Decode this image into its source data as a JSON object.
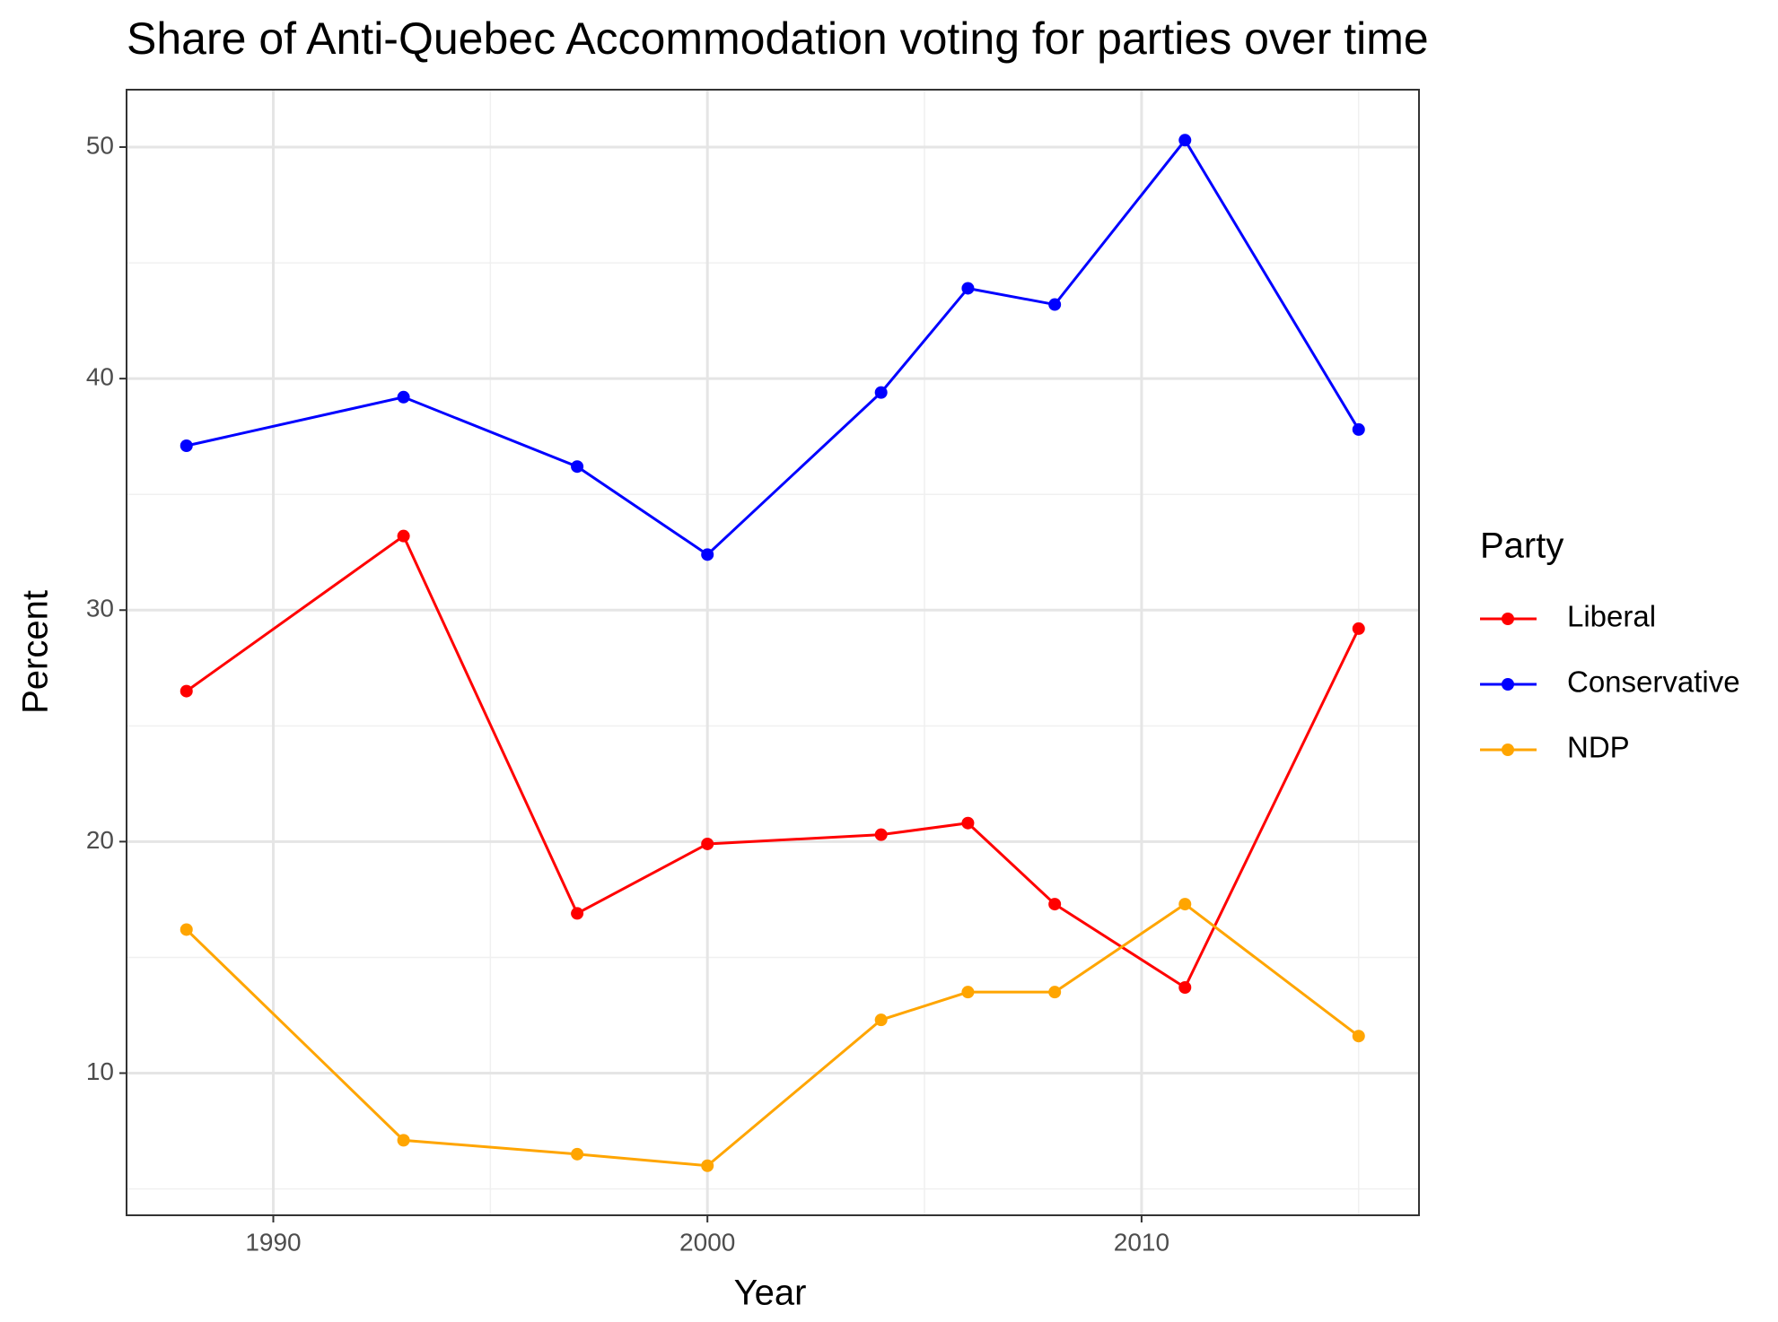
{
  "chart_data": {
    "type": "line",
    "title": "Share of Anti-Quebec Accommodation voting for parties over time",
    "x_label": "Year",
    "y_label": "Percent",
    "legend_title": "Party",
    "x": [
      1988,
      1993,
      1997,
      2000,
      2004,
      2006,
      2008,
      2011,
      2015
    ],
    "series": [
      {
        "name": "Liberal",
        "color": "#ff0000",
        "values": [
          26.5,
          33.2,
          16.9,
          19.9,
          20.3,
          20.8,
          17.3,
          13.7,
          29.2
        ]
      },
      {
        "name": "Conservative",
        "color": "#0000ff",
        "values": [
          37.1,
          39.2,
          36.2,
          32.4,
          39.4,
          43.9,
          43.2,
          50.3,
          37.8
        ]
      },
      {
        "name": "NDP",
        "color": "#ffa500",
        "values": [
          16.2,
          7.1,
          6.5,
          6.0,
          12.3,
          13.5,
          13.5,
          17.3,
          11.6
        ]
      }
    ],
    "xlim": [
      1986.62,
      2016.39
    ],
    "xticks": [
      1990,
      2000,
      2010
    ],
    "xminor": [
      1995,
      2005,
      2015
    ],
    "ylim": [
      3.86,
      52.48
    ],
    "yticks": [
      10,
      20,
      30,
      40,
      50
    ],
    "yminor": [
      5,
      15,
      25,
      35,
      45
    ],
    "grid": true,
    "legend": "right"
  }
}
